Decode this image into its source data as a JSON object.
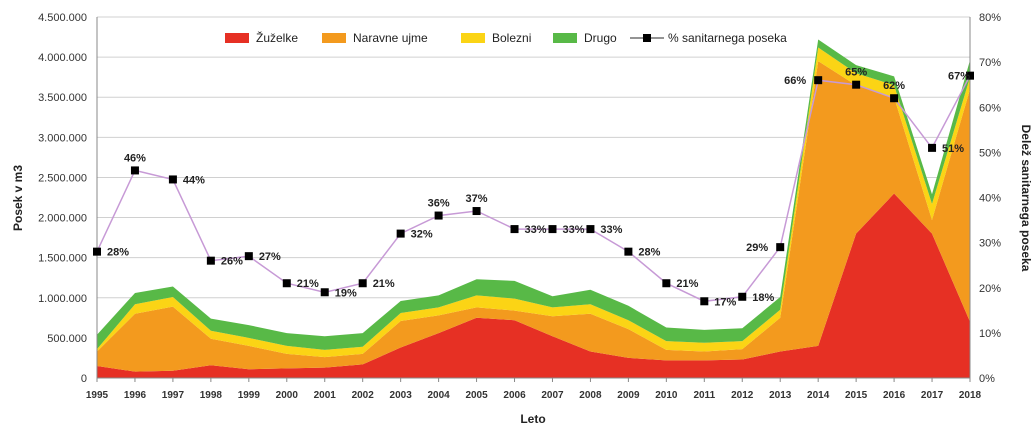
{
  "chart_data": {
    "type": "area",
    "stacked": true,
    "xlabel": "Leto",
    "ylabel": "Posek v m3",
    "y2label": "Delež sanitarnega poseka",
    "ylim": [
      0,
      4500000
    ],
    "y2lim": [
      0,
      0.8
    ],
    "grid": true,
    "legend_position": "top",
    "x": [
      "1995",
      "1996",
      "1997",
      "1998",
      "1999",
      "2000",
      "2001",
      "2002",
      "2003",
      "2004",
      "2005",
      "2006",
      "2007",
      "2008",
      "2009",
      "2010",
      "2011",
      "2012",
      "2013",
      "2014",
      "2015",
      "2016",
      "2017",
      "2018"
    ],
    "yticks": [
      "0",
      "500.000",
      "1.000.000",
      "1.500.000",
      "2.000.000",
      "2.500.000",
      "3.000.000",
      "3.500.000",
      "4.000.000",
      "4.500.000"
    ],
    "y2ticks": [
      "0%",
      "10%",
      "20%",
      "30%",
      "40%",
      "50%",
      "60%",
      "70%",
      "80%"
    ],
    "series": [
      {
        "name": "Žuželke",
        "color": "#e63024",
        "values": [
          150000,
          80000,
          90000,
          160000,
          110000,
          120000,
          130000,
          170000,
          380000,
          560000,
          750000,
          720000,
          520000,
          330000,
          250000,
          220000,
          220000,
          230000,
          330000,
          400000,
          1800000,
          2300000,
          1800000,
          700000
        ]
      },
      {
        "name": "Naravne ujme",
        "color": "#f39a1e",
        "values": [
          180000,
          720000,
          800000,
          330000,
          290000,
          180000,
          130000,
          130000,
          330000,
          220000,
          130000,
          120000,
          250000,
          470000,
          360000,
          130000,
          110000,
          130000,
          420000,
          3550000,
          1850000,
          1200000,
          170000,
          2900000
        ]
      },
      {
        "name": "Bolezni",
        "color": "#fbd415",
        "values": [
          30000,
          120000,
          120000,
          100000,
          100000,
          100000,
          90000,
          90000,
          100000,
          100000,
          150000,
          150000,
          110000,
          120000,
          110000,
          110000,
          110000,
          100000,
          100000,
          170000,
          150000,
          150000,
          200000,
          150000
        ]
      },
      {
        "name": "Drugo",
        "color": "#58b947",
        "values": [
          180000,
          140000,
          130000,
          150000,
          160000,
          160000,
          170000,
          170000,
          150000,
          150000,
          200000,
          220000,
          140000,
          180000,
          180000,
          170000,
          160000,
          160000,
          160000,
          100000,
          100000,
          110000,
          120000,
          210000
        ]
      }
    ],
    "line_series": {
      "name": "% sanitarnega poseka",
      "axis": "secondary",
      "line_color": "#c79ad6",
      "marker_color": "#000000",
      "values": [
        0.28,
        0.46,
        0.44,
        0.26,
        0.27,
        0.21,
        0.19,
        0.21,
        0.32,
        0.36,
        0.37,
        0.33,
        0.33,
        0.33,
        0.28,
        0.21,
        0.17,
        0.18,
        0.29,
        0.66,
        0.65,
        0.62,
        0.51,
        0.67
      ],
      "labels": [
        "28%",
        "46%",
        "44%",
        "26%",
        "27%",
        "21%",
        "19%",
        "21%",
        "32%",
        "36%",
        "37%",
        "33%",
        "33%",
        "33%",
        "28%",
        "21%",
        "17%",
        "18%",
        "29%",
        "66%",
        "65%",
        "62%",
        "51%",
        "67%"
      ]
    }
  }
}
